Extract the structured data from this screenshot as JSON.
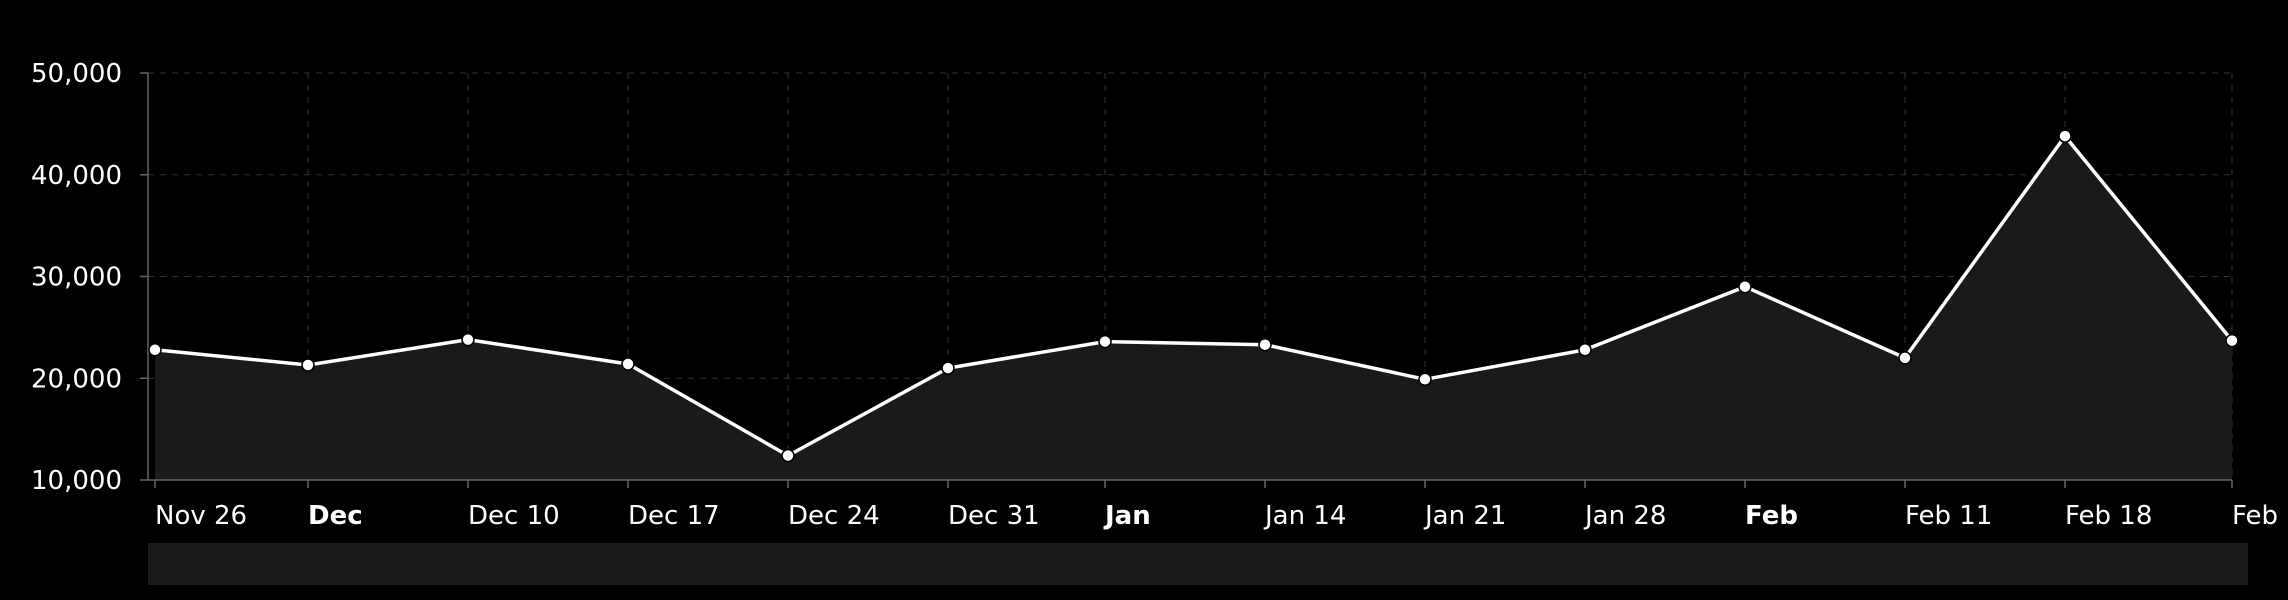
{
  "chart_data": {
    "type": "area",
    "title": "",
    "xlabel": "",
    "ylabel": "",
    "ylim": [
      10000,
      50000
    ],
    "y_ticks": [
      {
        "value": 10000,
        "label": "10,000"
      },
      {
        "value": 20000,
        "label": "20,000"
      },
      {
        "value": 30000,
        "label": "30,000"
      },
      {
        "value": 40000,
        "label": "40,000"
      },
      {
        "value": 50000,
        "label": "50,000"
      }
    ],
    "x_ticks": [
      {
        "date": "2023-11-26",
        "label": "Nov 26",
        "major": false
      },
      {
        "date": "2023-12-01",
        "label": "Dec",
        "major": true
      },
      {
        "date": "2023-12-10",
        "label": "Dec 10",
        "major": false
      },
      {
        "date": "2023-12-17",
        "label": "Dec 17",
        "major": false
      },
      {
        "date": "2023-12-24",
        "label": "Dec 24",
        "major": false
      },
      {
        "date": "2023-12-31",
        "label": "Dec 31",
        "major": false
      },
      {
        "date": "2024-01-01",
        "label": "Jan",
        "major": true
      },
      {
        "date": "2024-01-14",
        "label": "Jan 14",
        "major": false
      },
      {
        "date": "2024-01-21",
        "label": "Jan 21",
        "major": false
      },
      {
        "date": "2024-01-28",
        "label": "Jan 28",
        "major": false
      },
      {
        "date": "2024-02-01",
        "label": "Feb",
        "major": true
      },
      {
        "date": "2024-02-11",
        "label": "Feb 11",
        "major": false
      },
      {
        "date": "2024-02-18",
        "label": "Feb 18",
        "major": false
      },
      {
        "date": "2024-02-25",
        "label": "Feb",
        "major": false
      }
    ],
    "grid": true,
    "legend": "none",
    "scrollbar": true,
    "colors": {
      "background": "#000000",
      "line": "#ffffff",
      "area_fill": "#1a1a1a",
      "grid": "#333333",
      "axis": "#666666",
      "scrollbar": "#1c1c1c"
    },
    "series": [
      {
        "points": [
          {
            "x": "2023-11-26",
            "y": 22800
          },
          {
            "x": "2023-12-01",
            "y": 21300
          },
          {
            "x": "2023-12-10",
            "y": 23800
          },
          {
            "x": "2023-12-17",
            "y": 21400
          },
          {
            "x": "2023-12-24",
            "y": 12400
          },
          {
            "x": "2023-12-31",
            "y": 21000
          },
          {
            "x": "2024-01-01",
            "y": 23600
          },
          {
            "x": "2024-01-14",
            "y": 23300
          },
          {
            "x": "2024-01-21",
            "y": 19900
          },
          {
            "x": "2024-01-28",
            "y": 22800
          },
          {
            "x": "2024-02-01",
            "y": 29000
          },
          {
            "x": "2024-02-11",
            "y": 22000
          },
          {
            "x": "2024-02-18",
            "y": 43800
          },
          {
            "x": "2024-02-25",
            "y": 23700
          }
        ]
      }
    ]
  }
}
